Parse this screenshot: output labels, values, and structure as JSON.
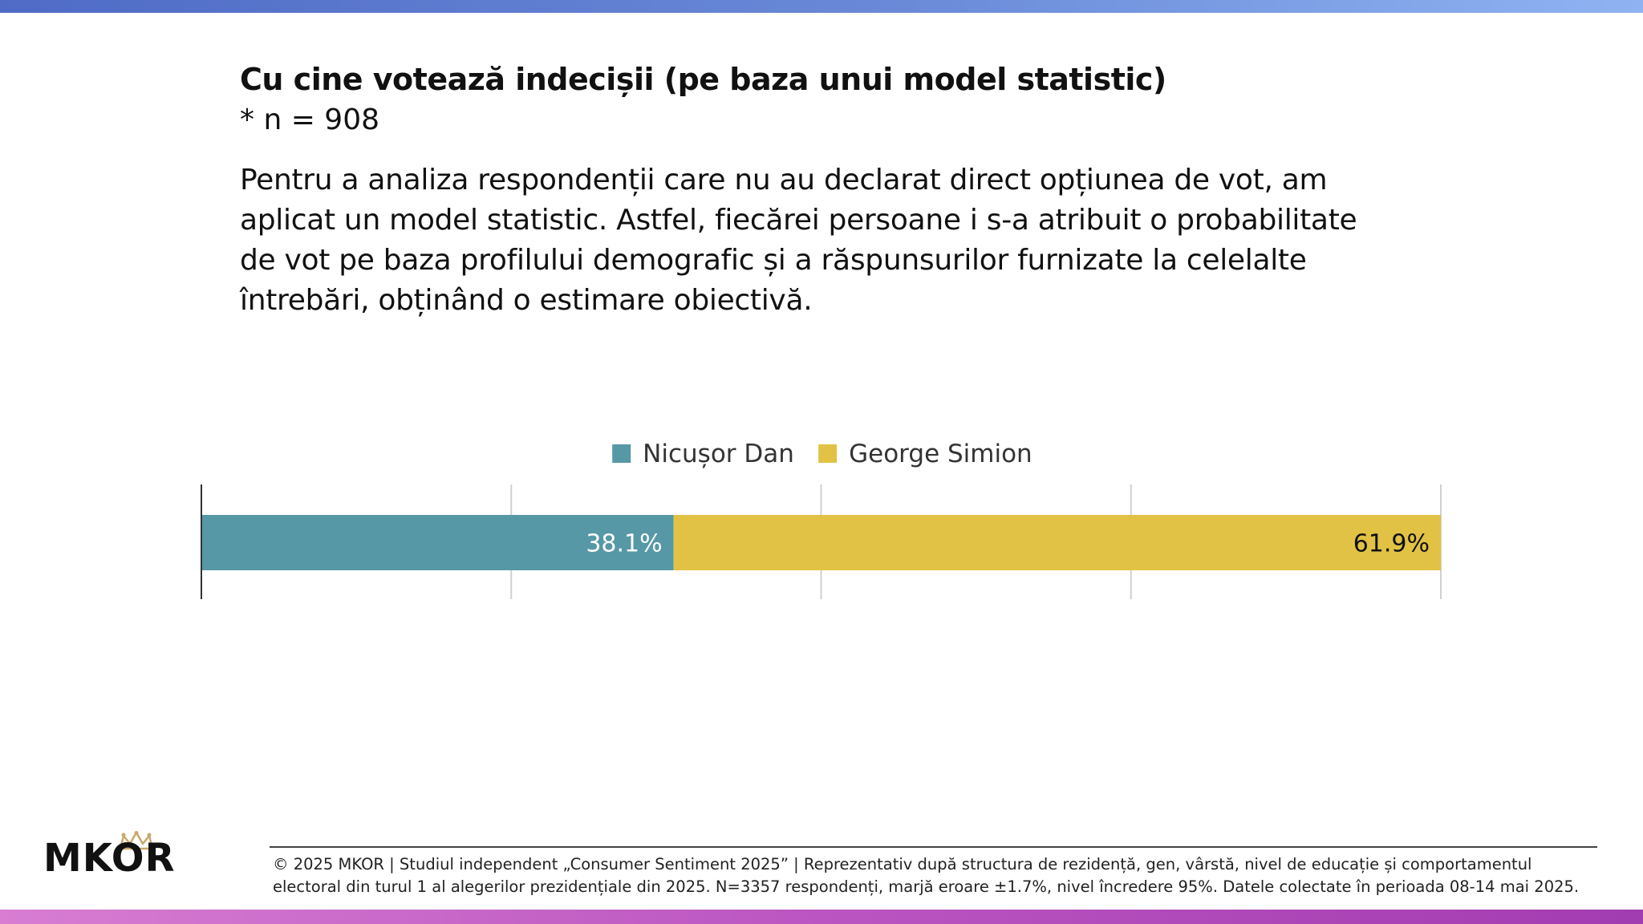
{
  "header": {
    "title": "Cu cine votează indecișii (pe baza unui model statistic)",
    "sample": "* n = 908",
    "description_lines": [
      "Pentru a analiza respondenții care nu au declarat direct opțiunea de vot, am",
      "aplicat un model statistic. Astfel, fiecărei persoane i s-a atribuit o probabilitate",
      "de vot pe baza profilului demografic și a răspunsurilor furnizate la celelalte",
      "întrebări, obținând o estimare obiectivă."
    ]
  },
  "chart_data": {
    "type": "bar",
    "orientation": "horizontal",
    "stacked": true,
    "categories": [
      ""
    ],
    "series": [
      {
        "name": "Nicușor Dan",
        "values": [
          38.1
        ],
        "label": "38.1%",
        "color": "#5698a6",
        "label_color": "#ffffff"
      },
      {
        "name": "George Simion",
        "values": [
          61.9
        ],
        "label": "61.9%",
        "color": "#e2c244",
        "label_color": "#111111"
      }
    ],
    "xlim": [
      0,
      100
    ],
    "gridlines": true,
    "legend": "top-center",
    "title": "",
    "xlabel": "",
    "ylabel": ""
  },
  "footer": {
    "logo_text": "MKOR",
    "credit_lines": [
      "© 2025 MKOR | Studiul independent „Consumer Sentiment 2025” | Reprezentativ după structura de rezidență, gen, vârstă, nivel de educație și comportamentul",
      "electoral din turul 1 al alegerilor prezidențiale din 2025. N=3357 respondenți, marjă eroare ±1.7%, nivel încredere 95%. Datele colectate în perioada 08-14 mai 2025."
    ]
  },
  "colors": {
    "top_bar": "#5b78cd",
    "bottom_bar": "#b84bbd",
    "logo_accent": "#c9a86a"
  }
}
